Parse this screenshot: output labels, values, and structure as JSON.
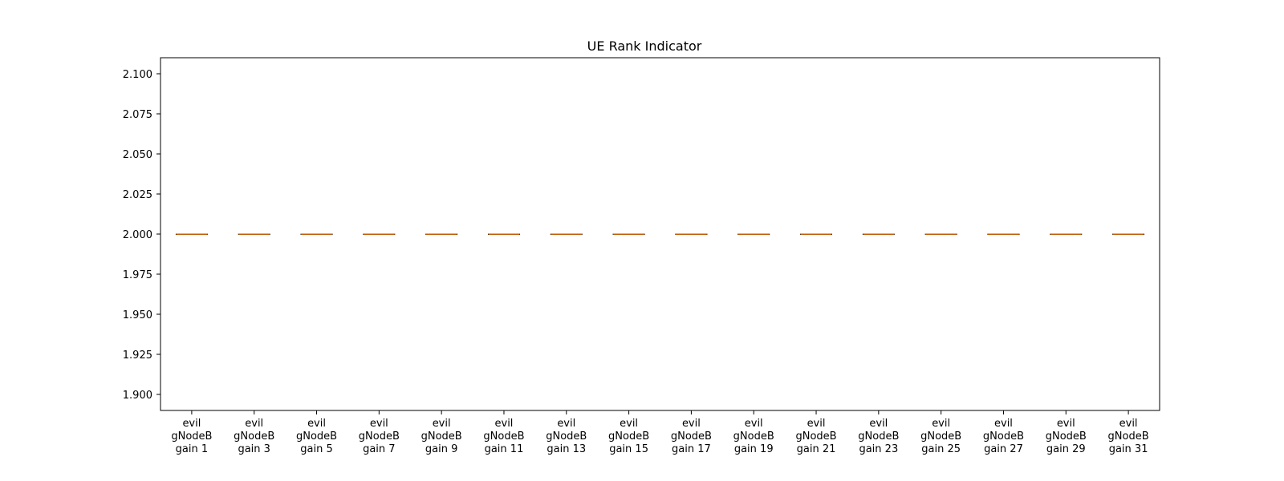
{
  "chart_data": {
    "type": "box",
    "title": "UE Rank Indicator",
    "xlabel": "",
    "ylabel": "",
    "ylim": [
      1.89,
      2.11
    ],
    "yticks": [
      "1.900",
      "1.925",
      "1.950",
      "1.975",
      "2.000",
      "2.025",
      "2.050",
      "2.075",
      "2.100"
    ],
    "grid": false,
    "categories": [
      [
        "evil",
        "gNodeB",
        "gain 1"
      ],
      [
        "evil",
        "gNodeB",
        "gain 3"
      ],
      [
        "evil",
        "gNodeB",
        "gain 5"
      ],
      [
        "evil",
        "gNodeB",
        "gain 7"
      ],
      [
        "evil",
        "gNodeB",
        "gain 9"
      ],
      [
        "evil",
        "gNodeB",
        "gain 11"
      ],
      [
        "evil",
        "gNodeB",
        "gain 13"
      ],
      [
        "evil",
        "gNodeB",
        "gain 15"
      ],
      [
        "evil",
        "gNodeB",
        "gain 17"
      ],
      [
        "evil",
        "gNodeB",
        "gain 19"
      ],
      [
        "evil",
        "gNodeB",
        "gain 21"
      ],
      [
        "evil",
        "gNodeB",
        "gain 23"
      ],
      [
        "evil",
        "gNodeB",
        "gain 25"
      ],
      [
        "evil",
        "gNodeB",
        "gain 27"
      ],
      [
        "evil",
        "gNodeB",
        "gain 29"
      ],
      [
        "evil",
        "gNodeB",
        "gain 31"
      ]
    ],
    "series": [
      {
        "values": [
          {
            "min": 2.0,
            "q1": 2.0,
            "median": 2.0,
            "q3": 2.0,
            "max": 2.0
          },
          {
            "min": 2.0,
            "q1": 2.0,
            "median": 2.0,
            "q3": 2.0,
            "max": 2.0
          },
          {
            "min": 2.0,
            "q1": 2.0,
            "median": 2.0,
            "q3": 2.0,
            "max": 2.0
          },
          {
            "min": 2.0,
            "q1": 2.0,
            "median": 2.0,
            "q3": 2.0,
            "max": 2.0
          },
          {
            "min": 2.0,
            "q1": 2.0,
            "median": 2.0,
            "q3": 2.0,
            "max": 2.0
          },
          {
            "min": 2.0,
            "q1": 2.0,
            "median": 2.0,
            "q3": 2.0,
            "max": 2.0
          },
          {
            "min": 2.0,
            "q1": 2.0,
            "median": 2.0,
            "q3": 2.0,
            "max": 2.0
          },
          {
            "min": 2.0,
            "q1": 2.0,
            "median": 2.0,
            "q3": 2.0,
            "max": 2.0
          },
          {
            "min": 2.0,
            "q1": 2.0,
            "median": 2.0,
            "q3": 2.0,
            "max": 2.0
          },
          {
            "min": 2.0,
            "q1": 2.0,
            "median": 2.0,
            "q3": 2.0,
            "max": 2.0
          },
          {
            "min": 2.0,
            "q1": 2.0,
            "median": 2.0,
            "q3": 2.0,
            "max": 2.0
          },
          {
            "min": 2.0,
            "q1": 2.0,
            "median": 2.0,
            "q3": 2.0,
            "max": 2.0
          },
          {
            "min": 2.0,
            "q1": 2.0,
            "median": 2.0,
            "q3": 2.0,
            "max": 2.0
          },
          {
            "min": 2.0,
            "q1": 2.0,
            "median": 2.0,
            "q3": 2.0,
            "max": 2.0
          },
          {
            "min": 2.0,
            "q1": 2.0,
            "median": 2.0,
            "q3": 2.0,
            "max": 2.0
          },
          {
            "min": 2.0,
            "q1": 2.0,
            "median": 2.0,
            "q3": 2.0,
            "max": 2.0
          }
        ]
      }
    ],
    "colors": {
      "median": "#ff7f0e",
      "box": "#000000",
      "axis": "#000000"
    }
  }
}
